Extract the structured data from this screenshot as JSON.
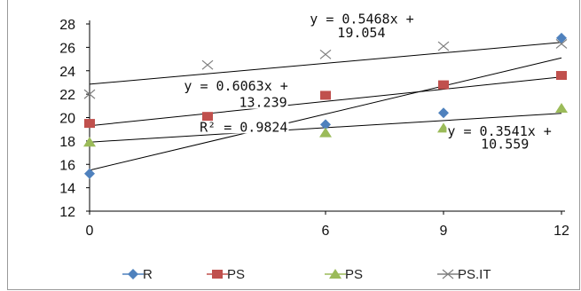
{
  "chart_data": {
    "type": "scatter",
    "title": "",
    "xlabel": "",
    "ylabel": "",
    "xlim": [
      0,
      12
    ],
    "ylim": [
      12,
      28
    ],
    "x_ticks": [
      "0",
      "6",
      "9",
      "12"
    ],
    "y_ticks": [
      "12",
      "14",
      "16",
      "18",
      "20",
      "22",
      "24",
      "26",
      "28"
    ],
    "grid": false,
    "legend_position": "bottom",
    "series": [
      {
        "name": "R",
        "marker": "diamond",
        "color": "#4f81bd",
        "points": [
          [
            0,
            15.2
          ],
          [
            6,
            19.4
          ],
          [
            9,
            20.4
          ],
          [
            12,
            26.8
          ]
        ],
        "trend": {
          "slope": 0.8,
          "intercept": 15.5
        }
      },
      {
        "name": "PS",
        "marker": "square",
        "color": "#c0504d",
        "points": [
          [
            0,
            19.5
          ],
          [
            3,
            20.1
          ],
          [
            6,
            21.9
          ],
          [
            9,
            22.8
          ],
          [
            12,
            23.6
          ]
        ],
        "trend": {
          "slope": 0.3471,
          "intercept": 19.3
        }
      },
      {
        "name": "PS",
        "marker": "triangle",
        "color": "#9bbb59",
        "points": [
          [
            0,
            17.9
          ],
          [
            6,
            18.7
          ],
          [
            9,
            19.1
          ],
          [
            12,
            20.8
          ]
        ],
        "trend": {
          "slope": 0.205,
          "intercept": 17.9
        }
      },
      {
        "name": "PS.IT",
        "marker": "x",
        "color": "#7f7f7f",
        "points": [
          [
            0,
            22.0
          ],
          [
            3,
            24.5
          ],
          [
            6,
            25.4
          ],
          [
            9,
            26.1
          ],
          [
            12,
            26.3
          ]
        ],
        "trend": {
          "slope": 0.298,
          "intercept": 22.85
        }
      }
    ],
    "annotations": [
      {
        "text": "y = 0.5468x +",
        "x": 5.6,
        "y": 28.05
      },
      {
        "text": "19.054",
        "x": 6.3,
        "y": 26.85
      },
      {
        "text": "y = 0.6063x +",
        "x": 2.4,
        "y": 22.3
      },
      {
        "text": "13.239",
        "x": 3.8,
        "y": 20.9
      },
      {
        "text": "R² = 0.9824",
        "x": 2.8,
        "y": 18.8
      },
      {
        "text": "y = 0.3541x +",
        "x": 9.1,
        "y": 18.45
      },
      {
        "text": "10.559",
        "x": 9.95,
        "y": 17.35
      }
    ]
  }
}
